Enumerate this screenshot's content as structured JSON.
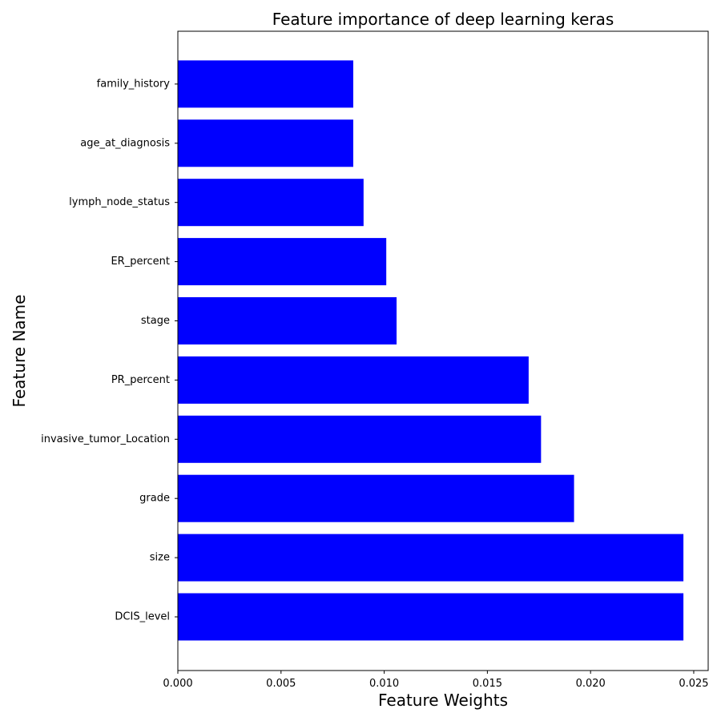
{
  "chart_data": {
    "type": "bar",
    "orientation": "horizontal",
    "title": "Feature importance of deep learning keras",
    "xlabel": "Feature Weights",
    "ylabel": "Feature Name",
    "categories": [
      "DCIS_level",
      "size",
      "grade",
      "invasive_tumor_Location",
      "PR_percent",
      "stage",
      "ER_percent",
      "lymph_node_status",
      "age_at_diagnosis",
      "family_history"
    ],
    "values": [
      0.0245,
      0.0245,
      0.0192,
      0.0176,
      0.017,
      0.0106,
      0.0101,
      0.009,
      0.0085,
      0.0085
    ],
    "xlim": [
      0.0,
      0.0257
    ],
    "xticks": [
      0.0,
      0.005,
      0.01,
      0.015,
      0.02,
      0.025
    ],
    "xtick_labels": [
      "0.000",
      "0.005",
      "0.010",
      "0.015",
      "0.020",
      "0.025"
    ],
    "bar_color": "#0000ff",
    "grid": false,
    "legend": "none"
  }
}
